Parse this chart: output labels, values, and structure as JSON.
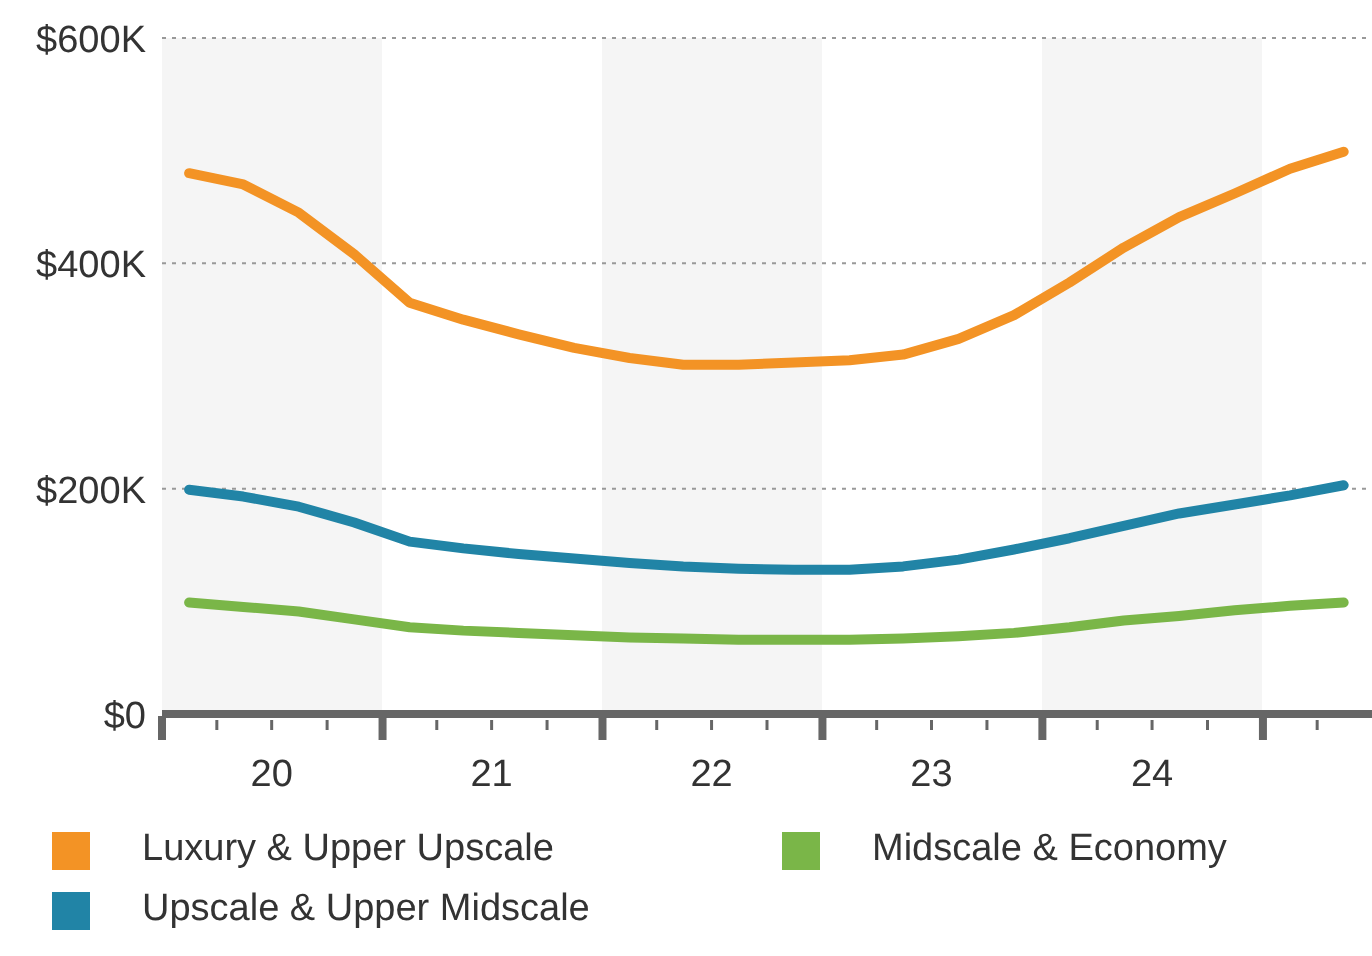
{
  "chart_data": {
    "type": "line",
    "x": [
      "2020-02-15",
      "2020-05-15",
      "2020-08-15",
      "2020-11-15",
      "2021-02-15",
      "2021-05-15",
      "2021-08-15",
      "2021-11-15",
      "2022-02-15",
      "2022-05-15",
      "2022-08-15",
      "2022-11-15",
      "2023-02-15",
      "2023-05-15",
      "2023-08-15",
      "2023-11-15",
      "2024-02-15",
      "2024-05-15",
      "2024-08-15",
      "2024-11-15",
      "2025-02-15",
      "2025-05-15"
    ],
    "series": [
      {
        "name": "Luxury & Upper Upscale",
        "color": "#f39325",
        "values": [
          480,
          470,
          445,
          408,
          365,
          350,
          337,
          325,
          316,
          310,
          310,
          312,
          314,
          319,
          333,
          354,
          383,
          414,
          441,
          462,
          484,
          499
        ]
      },
      {
        "name": "Upscale & Upper Midscale",
        "color": "#2184a6",
        "values": [
          199,
          193,
          184,
          170,
          153,
          147,
          142,
          138,
          134,
          131,
          129,
          128,
          128,
          131,
          137,
          146,
          156,
          167,
          178,
          186,
          194,
          203
        ]
      },
      {
        "name": "Midscale & Economy",
        "color": "#7ab648",
        "values": [
          99,
          95,
          91,
          84,
          77,
          74,
          72,
          70,
          68,
          67,
          66,
          66,
          66,
          67,
          69,
          72,
          77,
          83,
          87,
          92,
          96,
          99
        ]
      }
    ],
    "xlim": [
      "2020-01-01",
      "2025-07-01"
    ],
    "xticks": [
      {
        "value": "2020-01-01",
        "label": null
      },
      {
        "value": "2020-04-01",
        "label": null
      },
      {
        "value": "2020-07-01",
        "label": "20"
      },
      {
        "value": "2020-10-01",
        "label": null
      },
      {
        "value": "2021-01-01",
        "label": null
      },
      {
        "value": "2021-04-01",
        "label": null
      },
      {
        "value": "2021-07-01",
        "label": "21"
      },
      {
        "value": "2021-10-01",
        "label": null
      },
      {
        "value": "2022-01-01",
        "label": null
      },
      {
        "value": "2022-04-01",
        "label": null
      },
      {
        "value": "2022-07-01",
        "label": "22"
      },
      {
        "value": "2022-10-01",
        "label": null
      },
      {
        "value": "2023-01-01",
        "label": null
      },
      {
        "value": "2023-04-01",
        "label": null
      },
      {
        "value": "2023-07-01",
        "label": "23"
      },
      {
        "value": "2023-10-01",
        "label": null
      },
      {
        "value": "2024-01-01",
        "label": null
      },
      {
        "value": "2024-04-01",
        "label": null
      },
      {
        "value": "2024-07-01",
        "label": "24"
      },
      {
        "value": "2024-10-01",
        "label": null
      },
      {
        "value": "2025-01-01",
        "label": null
      },
      {
        "value": "2025-04-01",
        "label": null
      }
    ],
    "ylim": [
      0,
      600
    ],
    "yticks": [
      {
        "value": 0,
        "label": "$0"
      },
      {
        "value": 200,
        "label": "$200K"
      },
      {
        "value": 400,
        "label": "$400K"
      },
      {
        "value": 600,
        "label": "$600K"
      }
    ],
    "bands": [
      {
        "axis": "x",
        "from": "2020-01-01",
        "to": "2021-01-01",
        "color": "#f5f5f5"
      },
      {
        "axis": "x",
        "from": "2022-01-01",
        "to": "2023-01-01",
        "color": "#f5f5f5"
      },
      {
        "axis": "x",
        "from": "2024-01-01",
        "to": "2025-01-01",
        "color": "#f5f5f5"
      }
    ],
    "grid": "y",
    "legend": "bottom"
  }
}
